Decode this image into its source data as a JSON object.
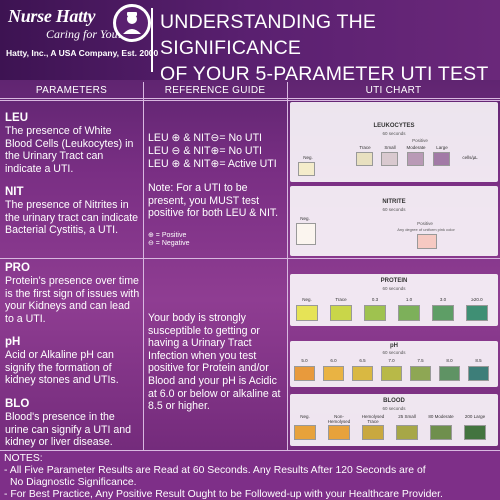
{
  "header": {
    "brand_name": "Nurse Hatty",
    "tagline": "Caring for You!",
    "company_line": "Hatty, Inc., A USA Company, Est. 2000",
    "title_line1": "UNDERSTANDING THE SIGNIFICANCE",
    "title_line2": "OF YOUR 5-PARAMETER UTI TEST"
  },
  "columns": {
    "parameters": "PARAMETERS",
    "reference": "REFERENCE GUIDE",
    "chart": "UTI CHART"
  },
  "parameters": [
    {
      "name": "LEU",
      "description": "The presence of White Blood Cells (Leukocytes) in the Urinary Tract can indicate a UTI."
    },
    {
      "name": "NIT",
      "description": "The presence of Nitrites in the urinary tract can indicate Bacterial Cystitis, a UTI."
    },
    {
      "name": "PRO",
      "description": "Protein's presence over time is the first sign of issues with your Kidneys and can lead to a UTI."
    },
    {
      "name": "pH",
      "description": "Acid or Alkaline pH can signify the formation of kidney stones and UTIs."
    },
    {
      "name": "BLO",
      "description": "Blood's presence in the urine can signify a UTI and kidney or liver disease."
    }
  ],
  "reference": {
    "rule1": "LEU ⊕ & NIT⊖= No UTI",
    "rule2": "LEU ⊖ & NIT⊕= No UTI",
    "rule3": "LEU ⊕ & NIT⊕= Active UTI",
    "note": "Note: For a UTI to be present, you MUST test positive for both LEU & NIT.",
    "legend_pos": "⊕ = Positive",
    "legend_neg": "⊖ = Negative",
    "blood_note": "Your body is strongly susceptible to getting or having a Urinary Tract Infection when you test positive for Protein and/or Blood and your pH is Acidic at 6.0 or below or alkaline at 8.5 or higher."
  },
  "chart": {
    "leukocytes": {
      "title": "LEUKOCYTES",
      "sub": "60 seconds",
      "positive": "Positive",
      "labels": [
        "Neg.",
        "Trace",
        "Small",
        "Moderate",
        "Large"
      ],
      "colors": [
        "#f4eccb",
        "#e8e0c0",
        "#d9c9cf",
        "#b99ab6",
        "#a27aa6"
      ],
      "unit": "cells/µL"
    },
    "nitrite": {
      "title": "NITRITE",
      "sub": "60 seconds",
      "positive": "Positive",
      "labels": [
        "Neg."
      ],
      "pos_note": "Any degree of uniform pink color",
      "colors": [
        "#fbf5ef",
        "#f6c9c2"
      ]
    },
    "protein": {
      "title": "PROTEIN",
      "sub": "60 seconds",
      "labels": [
        "Neg.",
        "Trace",
        "0.3",
        "1.0",
        "3.0",
        "≥20.0"
      ],
      "colors": [
        "#e6e356",
        "#c9d649",
        "#9fc24f",
        "#7db05a",
        "#5e9e66",
        "#3f8f74"
      ]
    },
    "ph": {
      "title": "pH",
      "sub": "60 seconds",
      "labels": [
        "5.0",
        "6.0",
        "6.5",
        "7.0",
        "7.5",
        "8.0",
        "8.5"
      ],
      "colors": [
        "#e89a3c",
        "#e9b343",
        "#d9b842",
        "#b8b948",
        "#8ea754",
        "#5f9364",
        "#3d7e79"
      ]
    },
    "blood": {
      "title": "BLOOD",
      "sub": "60 seconds",
      "labels": [
        "Neg.",
        "Non-Hemolysed Trace",
        "Hemolysed Trace",
        "25 Small",
        "80 Moderate",
        "200 Large"
      ],
      "colors": [
        "#e7a23b",
        "#e7a23b",
        "#c9a83f",
        "#a7a747",
        "#6f8f4d",
        "#43743f"
      ]
    }
  },
  "notes": {
    "heading": "NOTES:",
    "line1": "- All Five Parameter Results are Read at 60 Seconds. Any Results After 120 Seconds are of",
    "line2": "No Diagnostic Significance.",
    "line3": "- For Best Practice, Any Positive Result Ought to be Followed-up with your Healthcare Provider."
  }
}
